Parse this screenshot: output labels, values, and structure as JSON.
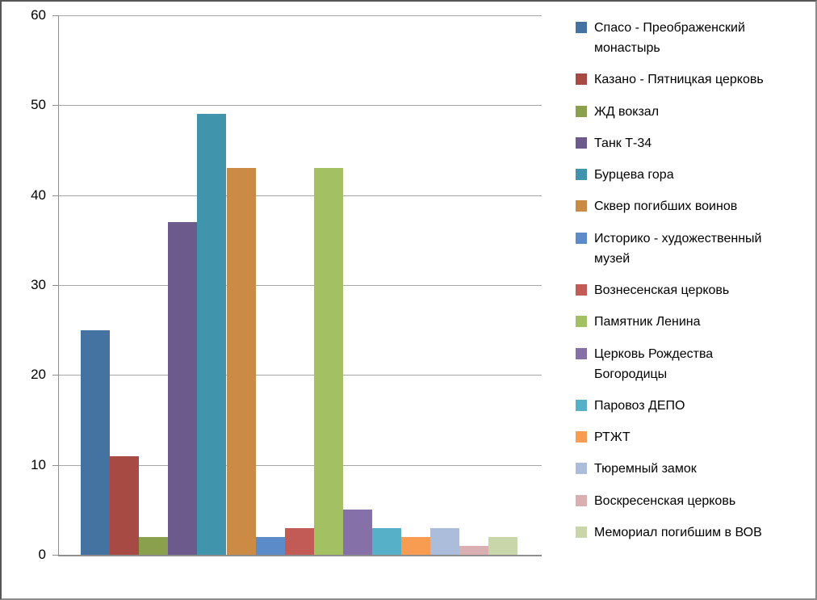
{
  "chart_data": {
    "type": "bar",
    "title": "",
    "xlabel": "",
    "ylabel": "",
    "ylim": [
      0,
      60
    ],
    "yticks": [
      0,
      10,
      20,
      30,
      40,
      50,
      60
    ],
    "grid": true,
    "legend_position": "right",
    "categories": [
      ""
    ],
    "series": [
      {
        "name": "Спасо - Преображенский\nмонастырь",
        "value": 25,
        "color": "#4472A1"
      },
      {
        "name": "Казано - Пятницкая церковь",
        "value": 11,
        "color": "#A84A44"
      },
      {
        "name": "ЖД вокзал",
        "value": 2,
        "color": "#8AA04C"
      },
      {
        "name": "Танк Т-34",
        "value": 37,
        "color": "#6D5A8D"
      },
      {
        "name": "Бурцева гора",
        "value": 49,
        "color": "#4095AC"
      },
      {
        "name": "Сквер погибших воинов",
        "value": 43,
        "color": "#CC8B44"
      },
      {
        "name": "Историко - художественный\nмузей",
        "value": 2,
        "color": "#5C8BC9"
      },
      {
        "name": "Вознесенская церковь",
        "value": 3,
        "color": "#C25B56"
      },
      {
        "name": "Памятник Ленина",
        "value": 43,
        "color": "#A3C162"
      },
      {
        "name": "Церковь Рождества\nБогородицы",
        "value": 5,
        "color": "#8670A8"
      },
      {
        "name": "Паровоз ДЕПО",
        "value": 3,
        "color": "#55B0C8"
      },
      {
        "name": "РТЖТ",
        "value": 2,
        "color": "#F89C51"
      },
      {
        "name": "Тюремный замок",
        "value": 3,
        "color": "#ACBDDB"
      },
      {
        "name": "Воскресенская церковь",
        "value": 1,
        "color": "#D9AFB2"
      },
      {
        "name": "Мемориал погибшим в ВОВ",
        "value": 2,
        "color": "#C9D6A9"
      }
    ],
    "colors": {
      "gridline": "#A6A6A6",
      "axis": "#8E8E8E",
      "text": "#000000",
      "background": "#FFFFFF"
    }
  }
}
